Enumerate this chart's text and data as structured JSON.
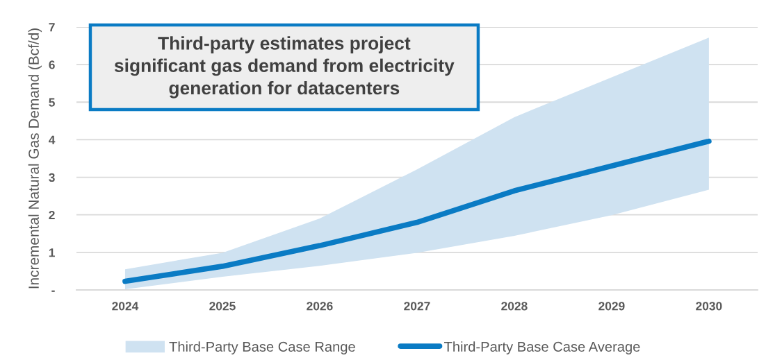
{
  "chart_data": {
    "type": "line",
    "title": "Third-party estimates project\nsignificant gas demand from electricity\ngeneration for datacenters",
    "ylabel": "Incremental Natural Gas Demand (Bcf/d)",
    "categories": [
      "2024",
      "2025",
      "2026",
      "2027",
      "2028",
      "2029",
      "2030"
    ],
    "series": [
      {
        "name": "Third-Party Base Case Range",
        "type": "area",
        "color": "#cfe2f1",
        "values": [
          null,
          null,
          null,
          null,
          null,
          null,
          null
        ],
        "lower": [
          0.02,
          0.35,
          0.64,
          0.99,
          1.44,
          1.99,
          2.67
        ],
        "upper": [
          0.55,
          0.99,
          1.9,
          3.21,
          4.6,
          5.66,
          6.72
        ]
      },
      {
        "name": "Third-Party Base Case Average",
        "color": "#0a7bc4",
        "values": [
          0.23,
          0.63,
          1.18,
          1.8,
          2.64,
          3.3,
          3.96
        ]
      }
    ],
    "ylim": [
      0,
      7
    ],
    "yticks": [
      {
        "value": 0,
        "label": "-"
      },
      1,
      2,
      3,
      4,
      5,
      6,
      7
    ],
    "grid": "y",
    "legend": "bottom"
  }
}
